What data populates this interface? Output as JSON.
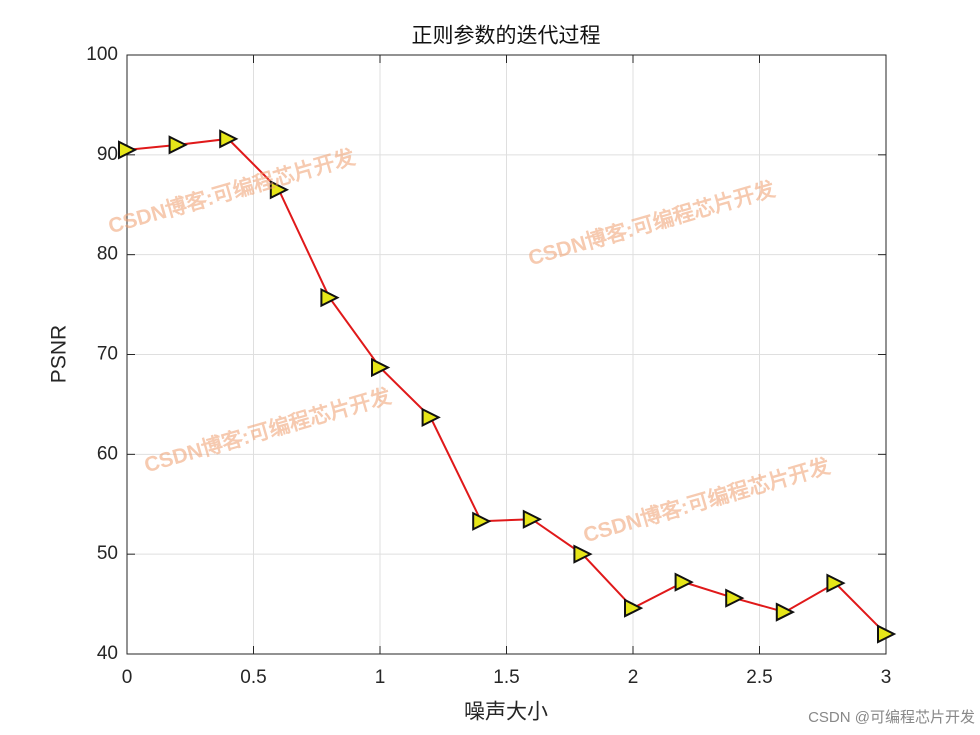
{
  "chart_data": {
    "type": "line",
    "title": "正则参数的迭代过程",
    "xlabel": "噪声大小",
    "ylabel": "PSNR",
    "x": [
      0,
      0.2,
      0.4,
      0.6,
      0.8,
      1.0,
      1.2,
      1.4,
      1.6,
      1.8,
      2.0,
      2.2,
      2.4,
      2.6,
      2.8,
      3.0
    ],
    "values": [
      90.5,
      91.0,
      91.6,
      86.5,
      75.7,
      68.7,
      63.7,
      53.3,
      53.5,
      50.0,
      44.6,
      47.2,
      45.6,
      44.2,
      47.1,
      42.0
    ],
    "color": "#e0191a",
    "marker_color": "#e6e619",
    "xlim": [
      0,
      3
    ],
    "xticks": [
      0,
      0.5,
      1,
      1.5,
      2,
      2.5,
      3
    ],
    "ylim": [
      40,
      100
    ],
    "yticks": [
      40,
      50,
      60,
      70,
      80,
      90,
      100
    ],
    "grid": true,
    "watermark": "CSDN博客:可编程芯片开发",
    "footer": "CSDN @可编程芯片开发"
  }
}
